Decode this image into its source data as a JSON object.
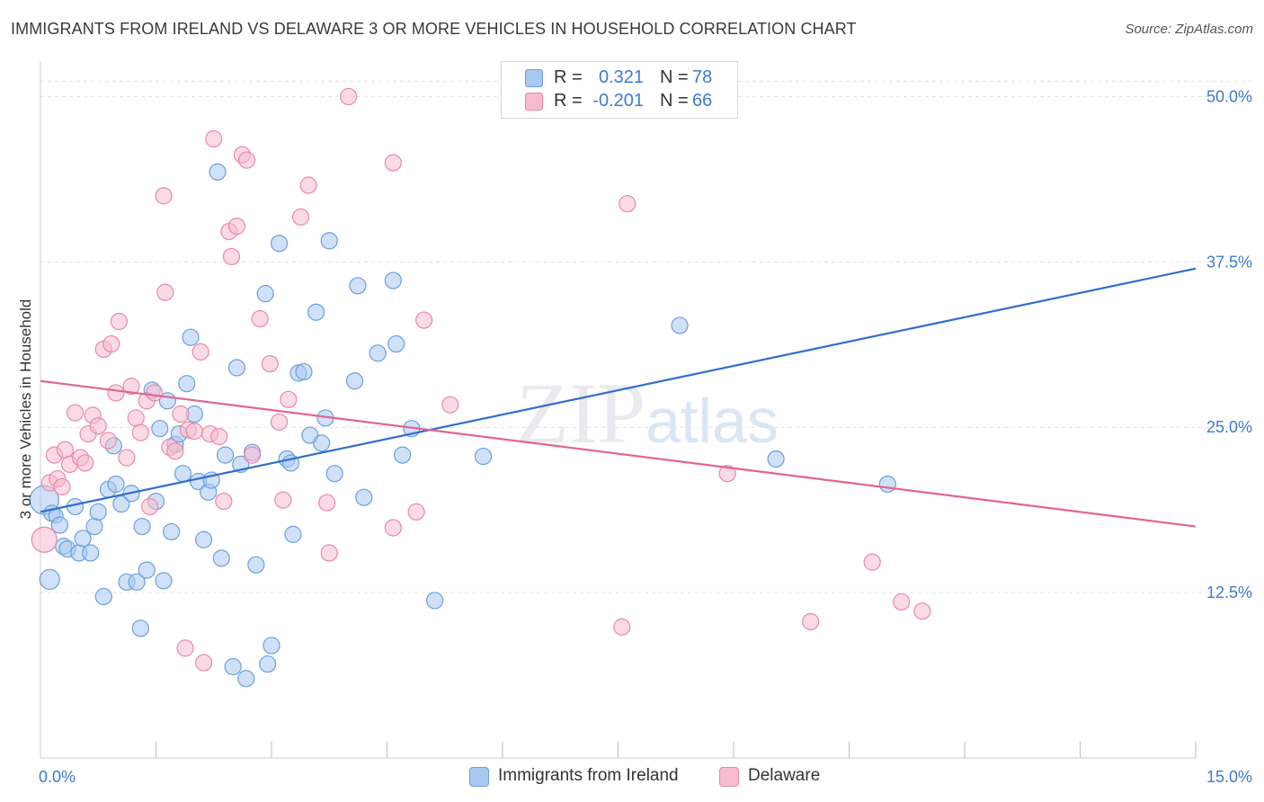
{
  "title": "IMMIGRANTS FROM IRELAND VS DELAWARE 3 OR MORE VEHICLES IN HOUSEHOLD CORRELATION CHART",
  "source": "Source: ZipAtlas.com",
  "watermark": "ZIPatlas",
  "legend_top": {
    "rows": [
      {
        "r_label": "R =",
        "r_value": "0.321",
        "n_label": "N =",
        "n_value": "78"
      },
      {
        "r_label": "R =",
        "r_value": "-0.201",
        "n_label": "N =",
        "n_value": "66"
      }
    ]
  },
  "legend_bottom": {
    "items": [
      {
        "label": "Immigrants from Ireland"
      },
      {
        "label": "Delaware"
      }
    ]
  },
  "colors": {
    "blue_fill": "#a9c8f0",
    "blue_stroke": "#6c9fdc",
    "blue_line": "#2f6fcc",
    "pink_fill": "#f6bccd",
    "pink_stroke": "#e88aa6",
    "pink_line": "#e06692",
    "axis_text": "#3d7bd1",
    "grid": "#e2e2e2"
  },
  "chart_data": {
    "type": "scatter",
    "title": "IMMIGRANTS FROM IRELAND VS DELAWARE 3 OR MORE VEHICLES IN HOUSEHOLD CORRELATION CHART",
    "xlabel": "",
    "ylabel": "3 or more Vehicles in Household",
    "xlim": [
      0,
      15
    ],
    "ylim": [
      0,
      52
    ],
    "x_tick_labels": [
      "0.0%",
      "15.0%"
    ],
    "y_ticks": [
      12.5,
      25.0,
      37.5,
      50.0
    ],
    "y_tick_labels": [
      "12.5%",
      "25.0%",
      "37.5%",
      "50.0%"
    ],
    "grid": true,
    "legend_position": "top-center",
    "series": [
      {
        "name": "Immigrants from Ireland",
        "color": "#a9c8f0",
        "trend": {
          "x": [
            0,
            15
          ],
          "y": [
            18.6,
            37.0
          ]
        },
        "points": [
          [
            0.05,
            19.5,
            16
          ],
          [
            0.12,
            13.5,
            11
          ],
          [
            0.15,
            18.5,
            9
          ],
          [
            0.2,
            18.3,
            8
          ],
          [
            0.25,
            17.6,
            9
          ],
          [
            0.3,
            16.0,
            9
          ],
          [
            0.35,
            15.8,
            9
          ],
          [
            0.45,
            19.0,
            9
          ],
          [
            0.5,
            15.5,
            9
          ],
          [
            0.55,
            16.6,
            9
          ],
          [
            0.65,
            15.5,
            9
          ],
          [
            0.7,
            17.5,
            9
          ],
          [
            0.75,
            18.6,
            9
          ],
          [
            0.82,
            12.2,
            9
          ],
          [
            0.88,
            20.3,
            9
          ],
          [
            0.95,
            23.6,
            9
          ],
          [
            0.98,
            20.7,
            9
          ],
          [
            1.05,
            19.2,
            9
          ],
          [
            1.12,
            13.3,
            9
          ],
          [
            1.18,
            20.0,
            9
          ],
          [
            1.25,
            13.3,
            9
          ],
          [
            1.3,
            9.8,
            9
          ],
          [
            1.32,
            17.5,
            9
          ],
          [
            1.38,
            14.2,
            9
          ],
          [
            1.45,
            27.8,
            9
          ],
          [
            1.5,
            19.4,
            9
          ],
          [
            1.55,
            24.9,
            9
          ],
          [
            1.6,
            13.4,
            9
          ],
          [
            1.65,
            27.0,
            9
          ],
          [
            1.7,
            17.1,
            9
          ],
          [
            1.75,
            23.7,
            9
          ],
          [
            1.8,
            24.5,
            9
          ],
          [
            1.85,
            21.5,
            9
          ],
          [
            1.9,
            28.3,
            9
          ],
          [
            1.95,
            31.8,
            9
          ],
          [
            2.0,
            26.0,
            9
          ],
          [
            2.05,
            20.9,
            9
          ],
          [
            2.12,
            16.5,
            9
          ],
          [
            2.18,
            20.1,
            9
          ],
          [
            2.22,
            21.0,
            9
          ],
          [
            2.3,
            44.3,
            9
          ],
          [
            2.35,
            15.1,
            9
          ],
          [
            2.4,
            22.9,
            9
          ],
          [
            2.5,
            6.9,
            9
          ],
          [
            2.55,
            29.5,
            9
          ],
          [
            2.6,
            22.2,
            9
          ],
          [
            2.67,
            6.0,
            9
          ],
          [
            2.75,
            23.1,
            9
          ],
          [
            2.8,
            14.6,
            9
          ],
          [
            2.92,
            35.1,
            9
          ],
          [
            2.95,
            7.1,
            9
          ],
          [
            3.0,
            8.5,
            9
          ],
          [
            3.1,
            38.9,
            9
          ],
          [
            3.2,
            22.6,
            9
          ],
          [
            3.25,
            22.3,
            9
          ],
          [
            3.28,
            16.9,
            9
          ],
          [
            3.35,
            29.1,
            9
          ],
          [
            3.42,
            29.2,
            9
          ],
          [
            3.5,
            24.4,
            9
          ],
          [
            3.58,
            33.7,
            9
          ],
          [
            3.65,
            23.8,
            9
          ],
          [
            3.7,
            25.7,
            9
          ],
          [
            3.75,
            39.1,
            9
          ],
          [
            3.82,
            21.5,
            9
          ],
          [
            4.08,
            28.5,
            9
          ],
          [
            4.12,
            35.7,
            9
          ],
          [
            4.2,
            19.7,
            9
          ],
          [
            4.38,
            30.6,
            9
          ],
          [
            4.58,
            36.1,
            9
          ],
          [
            4.62,
            31.3,
            9
          ],
          [
            4.7,
            22.9,
            9
          ],
          [
            4.82,
            24.9,
            9
          ],
          [
            5.12,
            11.9,
            9
          ],
          [
            5.75,
            22.8,
            9
          ],
          [
            8.3,
            32.7,
            9
          ],
          [
            9.55,
            22.6,
            9
          ],
          [
            11.0,
            20.7,
            9
          ]
        ]
      },
      {
        "name": "Delaware",
        "color": "#f6bccd",
        "trend": {
          "x": [
            0,
            15
          ],
          "y": [
            28.5,
            17.5
          ]
        },
        "points": [
          [
            0.05,
            16.5,
            14
          ],
          [
            0.12,
            20.8,
            9
          ],
          [
            0.18,
            22.9,
            9
          ],
          [
            0.22,
            21.1,
            9
          ],
          [
            0.28,
            20.5,
            9
          ],
          [
            0.32,
            23.3,
            9
          ],
          [
            0.38,
            22.2,
            9
          ],
          [
            0.45,
            26.1,
            9
          ],
          [
            0.52,
            22.7,
            9
          ],
          [
            0.58,
            22.3,
            9
          ],
          [
            0.62,
            24.5,
            9
          ],
          [
            0.68,
            25.9,
            9
          ],
          [
            0.75,
            25.1,
            9
          ],
          [
            0.82,
            30.9,
            9
          ],
          [
            0.88,
            24.0,
            9
          ],
          [
            0.92,
            31.3,
            9
          ],
          [
            0.98,
            27.6,
            9
          ],
          [
            1.02,
            33.0,
            9
          ],
          [
            1.12,
            22.7,
            9
          ],
          [
            1.18,
            28.1,
            9
          ],
          [
            1.24,
            25.7,
            9
          ],
          [
            1.3,
            24.6,
            9
          ],
          [
            1.38,
            27.0,
            9
          ],
          [
            1.42,
            19.0,
            9
          ],
          [
            1.48,
            27.6,
            9
          ],
          [
            1.6,
            42.5,
            9
          ],
          [
            1.62,
            35.2,
            9
          ],
          [
            1.68,
            23.5,
            9
          ],
          [
            1.75,
            23.2,
            9
          ],
          [
            1.82,
            26.0,
            9
          ],
          [
            1.88,
            8.3,
            9
          ],
          [
            1.92,
            24.8,
            9
          ],
          [
            2.0,
            24.7,
            9
          ],
          [
            2.08,
            30.7,
            9
          ],
          [
            2.12,
            7.2,
            9
          ],
          [
            2.2,
            24.5,
            9
          ],
          [
            2.25,
            46.8,
            9
          ],
          [
            2.32,
            24.3,
            9
          ],
          [
            2.38,
            19.4,
            9
          ],
          [
            2.45,
            39.8,
            9
          ],
          [
            2.48,
            37.9,
            9
          ],
          [
            2.55,
            40.2,
            9
          ],
          [
            2.62,
            45.6,
            9
          ],
          [
            2.68,
            45.2,
            9
          ],
          [
            2.75,
            22.9,
            9
          ],
          [
            2.85,
            33.2,
            9
          ],
          [
            2.98,
            29.8,
            9
          ],
          [
            3.1,
            25.4,
            9
          ],
          [
            3.15,
            19.5,
            9
          ],
          [
            3.22,
            27.1,
            9
          ],
          [
            3.38,
            40.9,
            9
          ],
          [
            3.48,
            43.3,
            9
          ],
          [
            3.72,
            19.3,
            9
          ],
          [
            3.75,
            15.5,
            9
          ],
          [
            4.0,
            50.0,
            9
          ],
          [
            4.58,
            45.0,
            9
          ],
          [
            4.58,
            17.4,
            9
          ],
          [
            4.88,
            18.6,
            9
          ],
          [
            4.98,
            33.1,
            9
          ],
          [
            5.32,
            26.7,
            9
          ],
          [
            7.55,
            9.9,
            9
          ],
          [
            7.62,
            41.9,
            9
          ],
          [
            8.92,
            21.5,
            9
          ],
          [
            10.0,
            10.3,
            9
          ],
          [
            10.8,
            14.8,
            9
          ],
          [
            11.18,
            11.8,
            9
          ],
          [
            11.45,
            11.1,
            9
          ]
        ]
      }
    ]
  }
}
